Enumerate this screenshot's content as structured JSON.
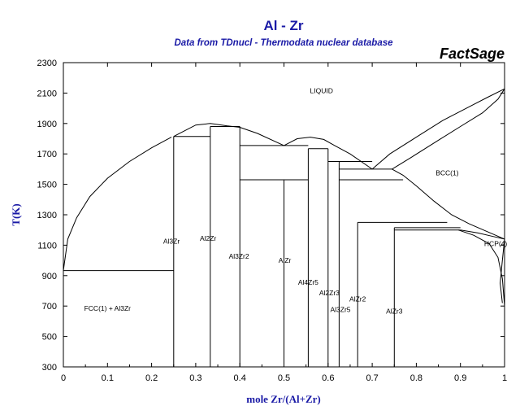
{
  "chart_data": {
    "type": "phase-diagram",
    "title": "Al - Zr",
    "subtitle": "Data from TDnucl - Thermodata nuclear database",
    "brand": "FactSage",
    "xlabel": "mole Zr/(Al+Zr)",
    "ylabel": "T(K)",
    "xlim": [
      0,
      1
    ],
    "ylim": [
      300,
      2300
    ],
    "xticks": [
      0,
      0.1,
      0.2,
      0.3,
      0.4,
      0.5,
      0.6,
      0.7,
      0.8,
      0.9,
      1
    ],
    "xtick_labels": [
      "0",
      "0.1",
      "0.2",
      "0.3",
      "0.4",
      "0.5",
      "0.6",
      "0.7",
      "0.8",
      "0.9",
      "1"
    ],
    "yticks": [
      300,
      500,
      700,
      900,
      1100,
      1300,
      1500,
      1700,
      1900,
      2100,
      2300
    ],
    "grid": false,
    "region_labels": [
      {
        "name": "liquid",
        "text": "LIQUID",
        "x": 0.585,
        "y": 2100
      },
      {
        "name": "bcc",
        "text": "BCC(1)",
        "x": 0.87,
        "y": 1560
      },
      {
        "name": "hcp",
        "text": "HCP(4)",
        "x": 0.98,
        "y": 1095
      },
      {
        "name": "fcc-al3zr",
        "text": "FCC(1) + Al3Zr",
        "x": 0.1,
        "y": 670
      },
      {
        "name": "al3zr",
        "text": "Al3Zr",
        "x": 0.245,
        "y": 1110
      },
      {
        "name": "al2zr",
        "text": "Al2Zr",
        "x": 0.328,
        "y": 1130
      },
      {
        "name": "al3zr2",
        "text": "Al3Zr2",
        "x": 0.398,
        "y": 1010
      },
      {
        "name": "alzr",
        "text": "AlZr",
        "x": 0.502,
        "y": 985
      },
      {
        "name": "al4zr5",
        "text": "Al4Zr5",
        "x": 0.555,
        "y": 840
      },
      {
        "name": "al2zr3",
        "text": "Al2Zr3",
        "x": 0.603,
        "y": 770
      },
      {
        "name": "al3zr5",
        "text": "Al3Zr5",
        "x": 0.628,
        "y": 660
      },
      {
        "name": "alzr2",
        "text": "AlZr2",
        "x": 0.667,
        "y": 730
      },
      {
        "name": "alzr3",
        "text": "AlZr3",
        "x": 0.75,
        "y": 650
      }
    ],
    "boundaries": [
      {
        "name": "liquidus-al-side",
        "points": [
          [
            0,
            933
          ],
          [
            0.01,
            1140
          ],
          [
            0.03,
            1280
          ],
          [
            0.06,
            1420
          ],
          [
            0.1,
            1540
          ],
          [
            0.15,
            1650
          ],
          [
            0.2,
            1740
          ],
          [
            0.245,
            1810
          ]
        ]
      },
      {
        "name": "al3zr-liquidus-to-al2zr",
        "points": [
          [
            0.25,
            1815
          ],
          [
            0.3,
            1890
          ],
          [
            0.333,
            1900
          ],
          [
            0.37,
            1885
          ],
          [
            0.4,
            1875
          ]
        ]
      },
      {
        "name": "al3zr2-liquidus",
        "points": [
          [
            0.4,
            1875
          ],
          [
            0.44,
            1835
          ],
          [
            0.5,
            1755
          ]
        ]
      },
      {
        "name": "alzr-liquidus-dome",
        "points": [
          [
            0.5,
            1755
          ],
          [
            0.53,
            1800
          ],
          [
            0.56,
            1810
          ],
          [
            0.59,
            1795
          ],
          [
            0.615,
            1755
          ],
          [
            0.65,
            1700
          ],
          [
            0.7,
            1600
          ]
        ]
      },
      {
        "name": "liquidus-bcc-side",
        "points": [
          [
            0.7,
            1600
          ],
          [
            0.74,
            1700
          ],
          [
            0.8,
            1810
          ],
          [
            0.86,
            1920
          ],
          [
            0.92,
            2010
          ],
          [
            0.96,
            2070
          ],
          [
            1,
            2128
          ]
        ]
      },
      {
        "name": "bcc-solidus",
        "points": [
          [
            0.745,
            1600
          ],
          [
            0.79,
            1680
          ],
          [
            0.85,
            1790
          ],
          [
            0.9,
            1880
          ],
          [
            0.95,
            1970
          ],
          [
            0.985,
            2060
          ],
          [
            1,
            2128
          ]
        ]
      },
      {
        "name": "bcc-hcp-upper",
        "points": [
          [
            0.745,
            1600
          ],
          [
            0.77,
            1560
          ],
          [
            0.8,
            1490
          ],
          [
            0.84,
            1390
          ],
          [
            0.88,
            1300
          ],
          [
            0.92,
            1240
          ],
          [
            0.96,
            1190
          ],
          [
            1,
            1140
          ]
        ]
      },
      {
        "name": "bcc-hcp-lower",
        "points": [
          [
            0.9,
            1200
          ],
          [
            0.94,
            1180
          ],
          [
            0.97,
            1160
          ],
          [
            1,
            1140
          ]
        ]
      },
      {
        "name": "hcp-solvus",
        "points": [
          [
            0.895,
            1200
          ],
          [
            0.93,
            1165
          ],
          [
            0.965,
            1110
          ],
          [
            0.985,
            1020
          ],
          [
            0.995,
            880
          ],
          [
            1,
            700
          ]
        ]
      },
      {
        "name": "hcp-solvus-right",
        "points": [
          [
            1,
            1140
          ],
          [
            0.995,
            1000
          ],
          [
            0.99,
            850
          ],
          [
            0.995,
            720
          ]
        ]
      },
      {
        "name": "eutectic-al",
        "points": [
          [
            0,
            933
          ],
          [
            0.25,
            933
          ]
        ]
      },
      {
        "name": "al3zr-left",
        "points": [
          [
            0.25,
            300
          ],
          [
            0.25,
            1815
          ]
        ]
      },
      {
        "name": "al3zr-top",
        "points": [
          [
            0.25,
            1815
          ],
          [
            0.333,
            1815
          ]
        ]
      },
      {
        "name": "al2zr-left",
        "points": [
          [
            0.333,
            300
          ],
          [
            0.333,
            1880
          ]
        ]
      },
      {
        "name": "al2zr-top",
        "points": [
          [
            0.333,
            1880
          ],
          [
            0.4,
            1880
          ]
        ]
      },
      {
        "name": "al3zr2-line",
        "points": [
          [
            0.4,
            300
          ],
          [
            0.4,
            1880
          ]
        ]
      },
      {
        "name": "peritectic-1755",
        "points": [
          [
            0.4,
            1755
          ],
          [
            0.555,
            1755
          ]
        ]
      },
      {
        "name": "peritectic-1530",
        "points": [
          [
            0.4,
            1530
          ],
          [
            0.555,
            1530
          ]
        ]
      },
      {
        "name": "alzr-line",
        "points": [
          [
            0.5,
            300
          ],
          [
            0.5,
            1530
          ]
        ]
      },
      {
        "name": "al4zr5-line",
        "points": [
          [
            0.555,
            300
          ],
          [
            0.555,
            1735
          ]
        ]
      },
      {
        "name": "peritectic-1735",
        "points": [
          [
            0.555,
            1735
          ],
          [
            0.6,
            1735
          ]
        ]
      },
      {
        "name": "al2zr3-line",
        "points": [
          [
            0.6,
            300
          ],
          [
            0.6,
            1735
          ]
        ]
      },
      {
        "name": "peritectic-1650",
        "points": [
          [
            0.6,
            1650
          ],
          [
            0.7,
            1650
          ]
        ]
      },
      {
        "name": "al3zr5-line",
        "points": [
          [
            0.625,
            300
          ],
          [
            0.625,
            1650
          ]
        ]
      },
      {
        "name": "peritectic-1600",
        "points": [
          [
            0.625,
            1600
          ],
          [
            0.745,
            1600
          ]
        ]
      },
      {
        "name": "peritectic-1530-right",
        "points": [
          [
            0.625,
            1530
          ],
          [
            0.77,
            1530
          ]
        ]
      },
      {
        "name": "alzr2-line",
        "points": [
          [
            0.667,
            300
          ],
          [
            0.667,
            1250
          ]
        ]
      },
      {
        "name": "eutectoid-1250",
        "points": [
          [
            0.667,
            1250
          ],
          [
            0.87,
            1250
          ]
        ]
      },
      {
        "name": "alzr3-top",
        "points": [
          [
            0.75,
            1215
          ],
          [
            0.9,
            1215
          ]
        ]
      },
      {
        "name": "alzr3-upper",
        "points": [
          [
            0.75,
            1200
          ],
          [
            0.9,
            1200
          ]
        ]
      },
      {
        "name": "alzr3-line",
        "points": [
          [
            0.75,
            300
          ],
          [
            0.75,
            1215
          ]
        ]
      }
    ]
  }
}
